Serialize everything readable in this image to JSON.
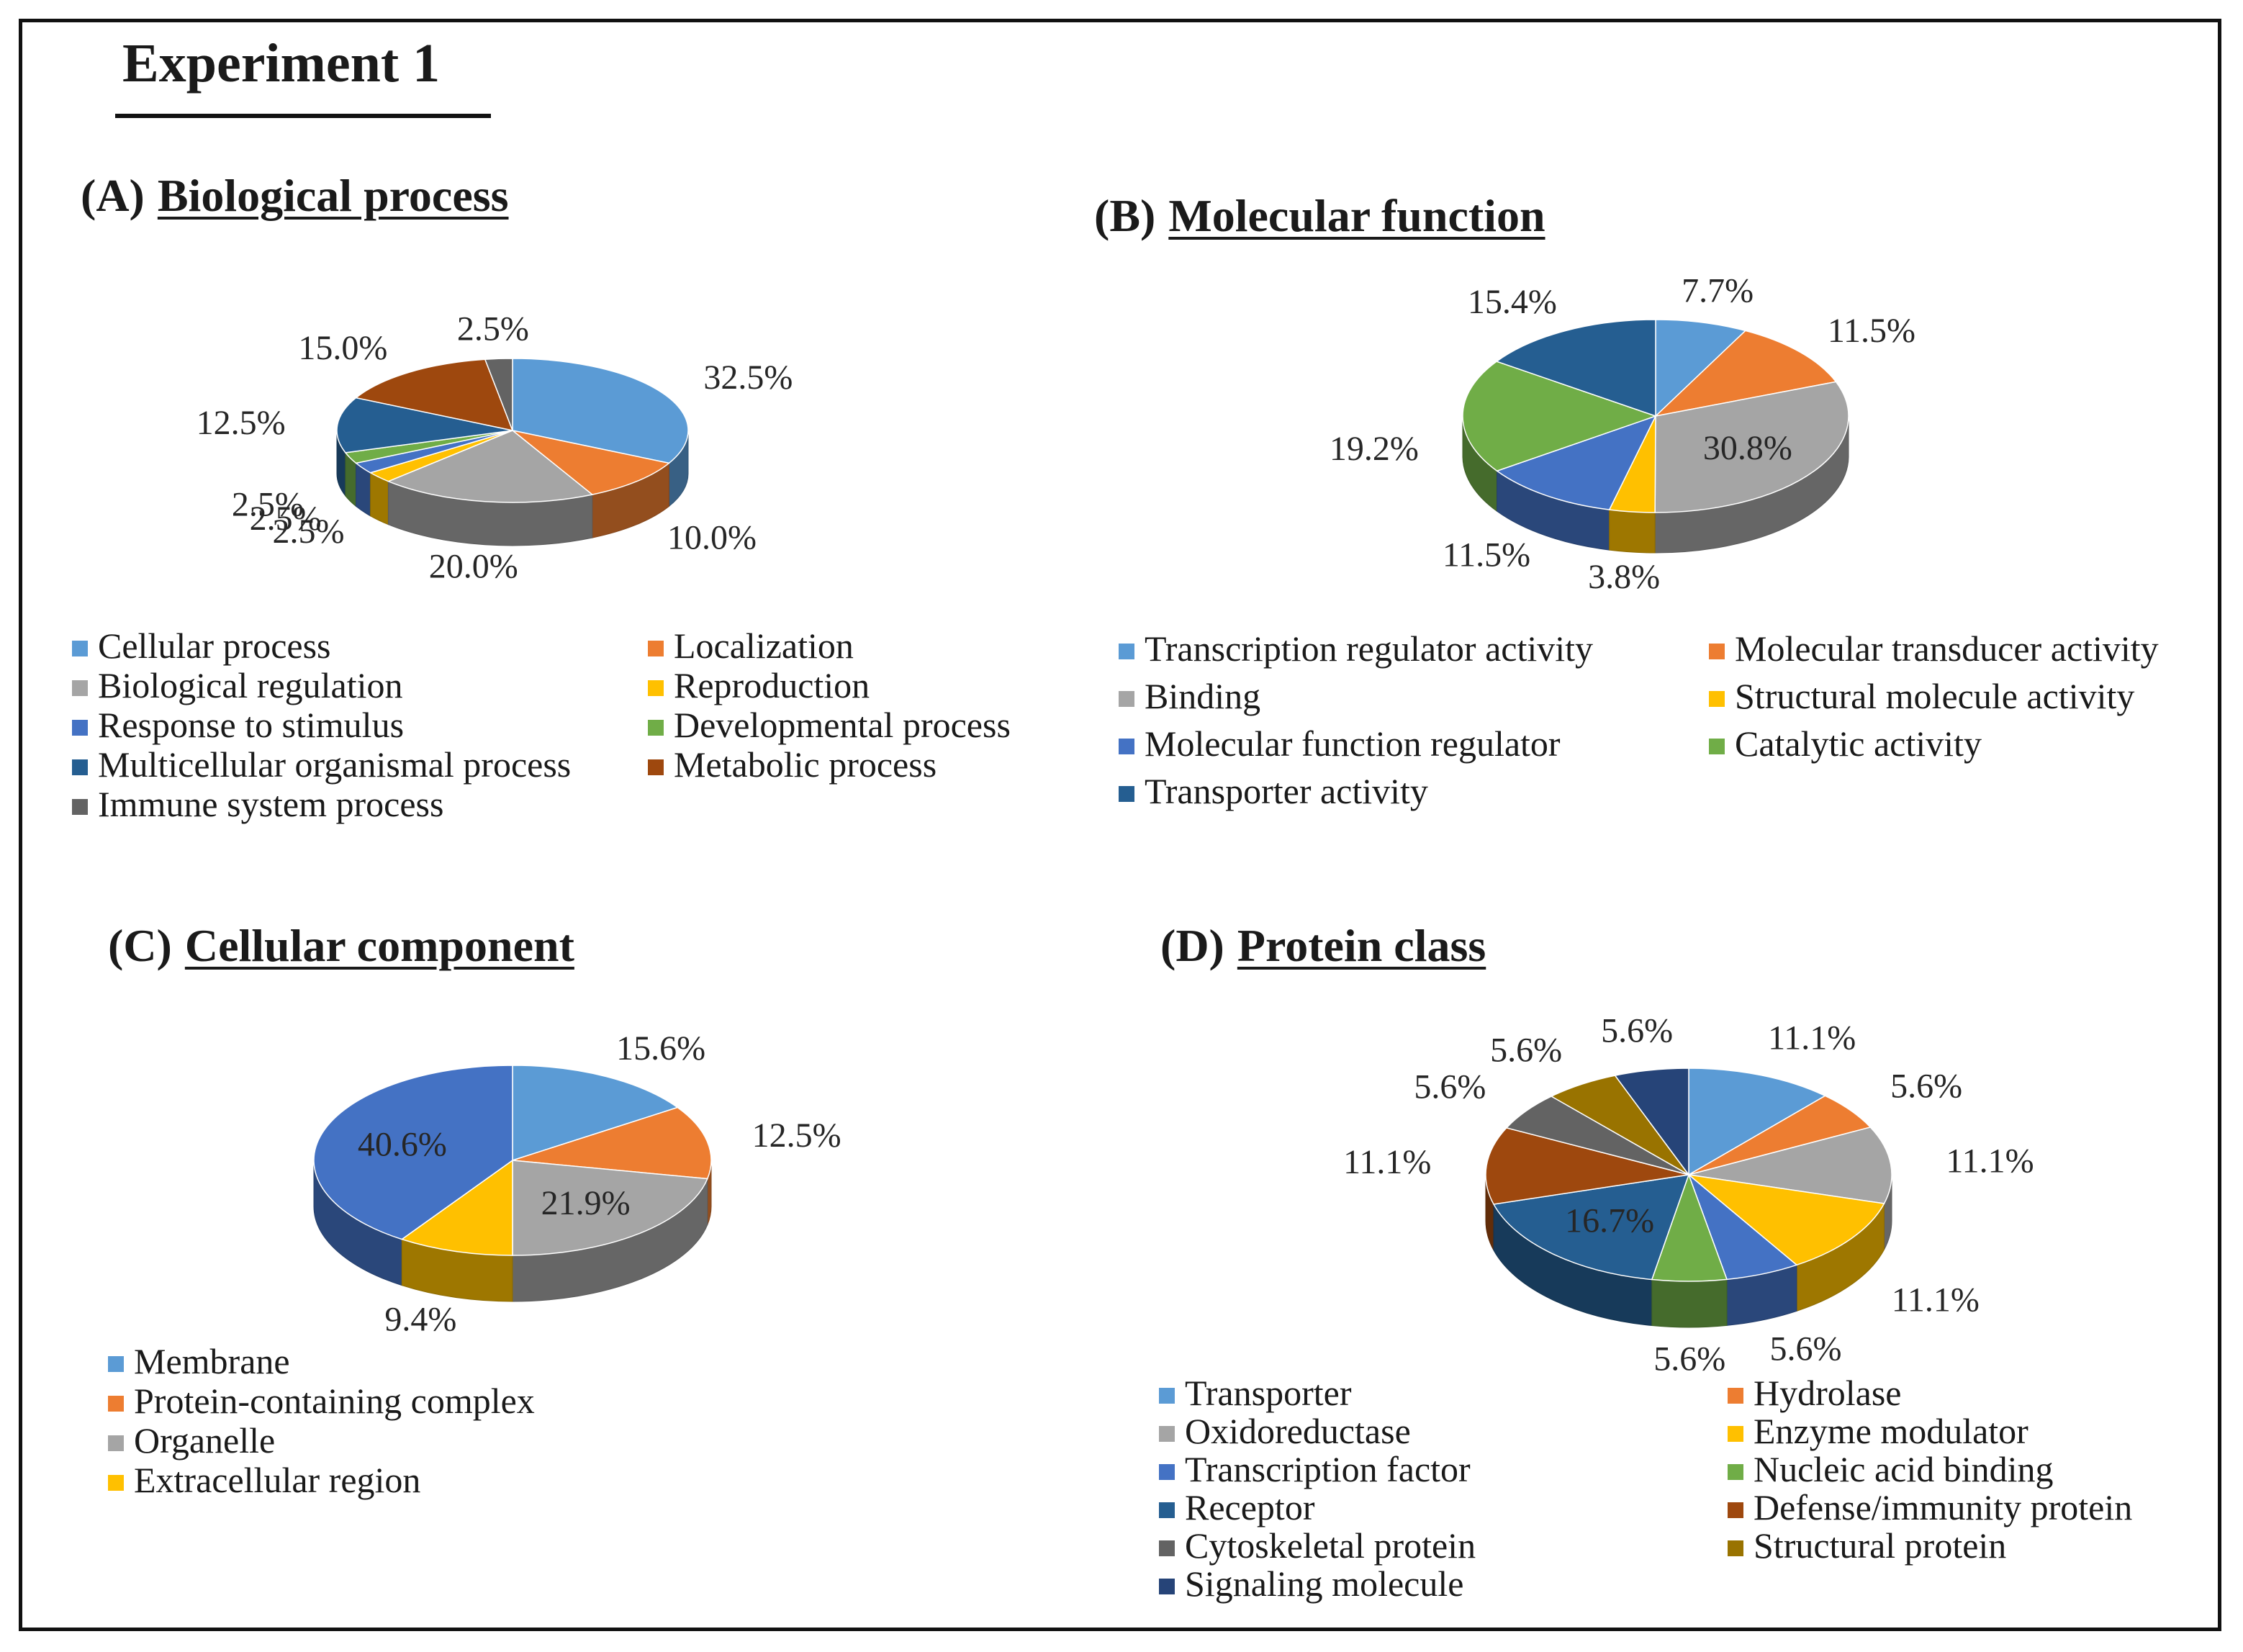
{
  "figure_title": "Experiment 1",
  "chart_data": [
    {
      "id": "A",
      "type": "pie",
      "panel_label": "(A)",
      "title": "Biological process",
      "categories": [
        "Cellular process",
        "Localization",
        "Biological regulation",
        "Reproduction",
        "Response to stimulus",
        "Developmental process",
        "Multicellular organismal process",
        "Metabolic process",
        "Immune system process"
      ],
      "values": [
        32.5,
        10.0,
        20.0,
        2.5,
        2.5,
        2.5,
        12.5,
        15.0,
        2.5
      ],
      "labels": [
        "32.5%",
        "10.0%",
        "20.0%",
        "2.5%",
        "2.5%",
        "2.5%",
        "12.5%",
        "15.0%",
        "2.5%"
      ],
      "colors": [
        "#5B9BD5",
        "#ED7D31",
        "#A5A5A5",
        "#FFC000",
        "#4472C4",
        "#70AD47",
        "#255E91",
        "#9E480E",
        "#636363"
      ],
      "legend_columns": 2
    },
    {
      "id": "B",
      "type": "pie",
      "panel_label": "(B)",
      "title": "Molecular function",
      "categories": [
        "Transcription regulator activity",
        "Molecular transducer activity",
        "Binding",
        "Structural molecule activity",
        "Molecular function regulator",
        "Catalytic activity",
        "Transporter activity"
      ],
      "values": [
        7.7,
        11.5,
        30.8,
        3.8,
        11.5,
        19.2,
        15.4
      ],
      "labels": [
        "7.7%",
        "11.5%",
        "30.8%",
        "3.8%",
        "11.5%",
        "19.2%",
        "15.4%"
      ],
      "colors": [
        "#5B9BD5",
        "#ED7D31",
        "#A5A5A5",
        "#FFC000",
        "#4472C4",
        "#70AD47",
        "#255E91"
      ],
      "legend_columns": 2
    },
    {
      "id": "C",
      "type": "pie",
      "panel_label": "(C)",
      "title": "Cellular component",
      "categories": [
        "Membrane",
        "Protein-containing complex",
        "Organelle",
        "Extracellular region"
      ],
      "values": [
        15.6,
        12.5,
        21.9,
        9.4,
        40.6
      ],
      "slice_categories": [
        "Membrane",
        "Protein-containing complex",
        "Organelle",
        "Extracellular region",
        ""
      ],
      "labels": [
        "15.6%",
        "12.5%",
        "21.9%",
        "9.4%",
        "40.6%"
      ],
      "colors": [
        "#5B9BD5",
        "#ED7D31",
        "#A5A5A5",
        "#FFC000",
        "#4472C4"
      ],
      "legend_columns": 1
    },
    {
      "id": "D",
      "type": "pie",
      "panel_label": "(D)",
      "title": "Protein class",
      "categories": [
        "Transporter",
        "Hydrolase",
        "Oxidoreductase",
        "Enzyme modulator",
        "Transcription factor",
        "Nucleic acid binding",
        "Receptor",
        "Defense/immunity protein",
        "Cytoskeletal protein",
        "Structural protein",
        "Signaling molecule"
      ],
      "values": [
        11.1,
        5.6,
        11.1,
        11.1,
        5.6,
        5.6,
        16.7,
        11.1,
        5.6,
        5.6,
        5.6
      ],
      "labels": [
        "11.1%",
        "5.6%",
        "11.1%",
        "11.1%",
        "5.6%",
        "5.6%",
        "16.7%",
        "11.1%",
        "5.6%",
        "5.6%",
        "5.6%"
      ],
      "colors": [
        "#5B9BD5",
        "#ED7D31",
        "#A5A5A5",
        "#FFC000",
        "#4472C4",
        "#70AD47",
        "#255E91",
        "#9E480E",
        "#636363",
        "#997300",
        "#264478"
      ],
      "legend_columns": 2
    }
  ]
}
